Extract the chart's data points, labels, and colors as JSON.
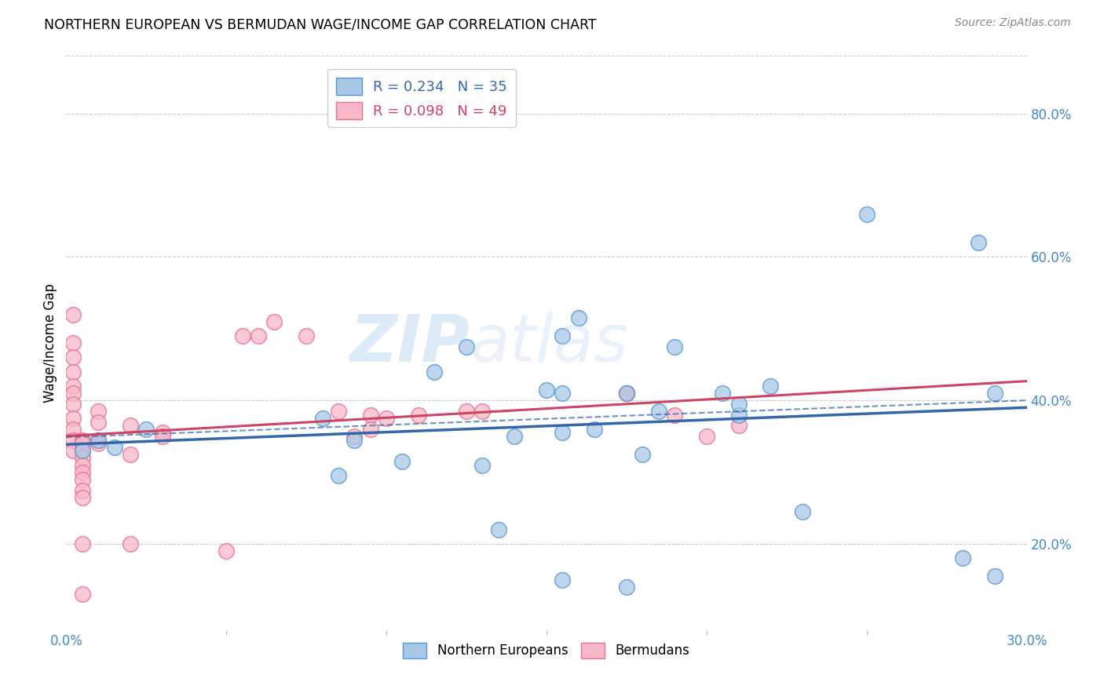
{
  "title": "NORTHERN EUROPEAN VS BERMUDAN WAGE/INCOME GAP CORRELATION CHART",
  "source": "Source: ZipAtlas.com",
  "ylabel": "Wage/Income Gap",
  "xlim": [
    0.0,
    0.3
  ],
  "ylim": [
    0.08,
    0.88
  ],
  "yticks_right": [
    0.2,
    0.4,
    0.6,
    0.8
  ],
  "ytick_labels_right": [
    "20.0%",
    "40.0%",
    "60.0%",
    "80.0%"
  ],
  "blue_R": 0.234,
  "blue_N": 35,
  "pink_R": 0.098,
  "pink_N": 49,
  "blue_fill": "#a8c8e8",
  "blue_edge": "#5599cc",
  "pink_fill": "#f8b8c8",
  "pink_edge": "#e87090",
  "trend_blue": "#3366aa",
  "trend_pink": "#cc4466",
  "watermark_color": "#c8ddf0",
  "blue_x": [
    0.025,
    0.01,
    0.015,
    0.005,
    0.08,
    0.09,
    0.105,
    0.085,
    0.115,
    0.125,
    0.13,
    0.14,
    0.155,
    0.16,
    0.165,
    0.155,
    0.15,
    0.19,
    0.185,
    0.21,
    0.155,
    0.205,
    0.21,
    0.175,
    0.22,
    0.25,
    0.285,
    0.29,
    0.23,
    0.18,
    0.135,
    0.175,
    0.155,
    0.28,
    0.29
  ],
  "blue_y": [
    0.36,
    0.345,
    0.335,
    0.33,
    0.375,
    0.345,
    0.315,
    0.295,
    0.44,
    0.475,
    0.31,
    0.35,
    0.49,
    0.515,
    0.36,
    0.355,
    0.415,
    0.475,
    0.385,
    0.38,
    0.41,
    0.41,
    0.395,
    0.41,
    0.42,
    0.66,
    0.62,
    0.41,
    0.245,
    0.325,
    0.22,
    0.14,
    0.15,
    0.18,
    0.155
  ],
  "pink_x": [
    0.002,
    0.002,
    0.002,
    0.002,
    0.002,
    0.002,
    0.002,
    0.002,
    0.002,
    0.002,
    0.002,
    0.005,
    0.005,
    0.005,
    0.005,
    0.005,
    0.005,
    0.005,
    0.005,
    0.005,
    0.005,
    0.005,
    0.01,
    0.01,
    0.01,
    0.01,
    0.02,
    0.02,
    0.02,
    0.03,
    0.03,
    0.05,
    0.055,
    0.06,
    0.065,
    0.075,
    0.085,
    0.09,
    0.095,
    0.095,
    0.1,
    0.11,
    0.125,
    0.13,
    0.175,
    0.175,
    0.19,
    0.2,
    0.21
  ],
  "pink_y": [
    0.52,
    0.48,
    0.46,
    0.44,
    0.42,
    0.41,
    0.395,
    0.375,
    0.36,
    0.345,
    0.33,
    0.345,
    0.34,
    0.33,
    0.32,
    0.31,
    0.3,
    0.29,
    0.275,
    0.265,
    0.2,
    0.13,
    0.345,
    0.34,
    0.385,
    0.37,
    0.365,
    0.325,
    0.2,
    0.355,
    0.35,
    0.19,
    0.49,
    0.49,
    0.51,
    0.49,
    0.385,
    0.35,
    0.38,
    0.36,
    0.375,
    0.38,
    0.385,
    0.385,
    0.41,
    0.41,
    0.38,
    0.35,
    0.365
  ]
}
